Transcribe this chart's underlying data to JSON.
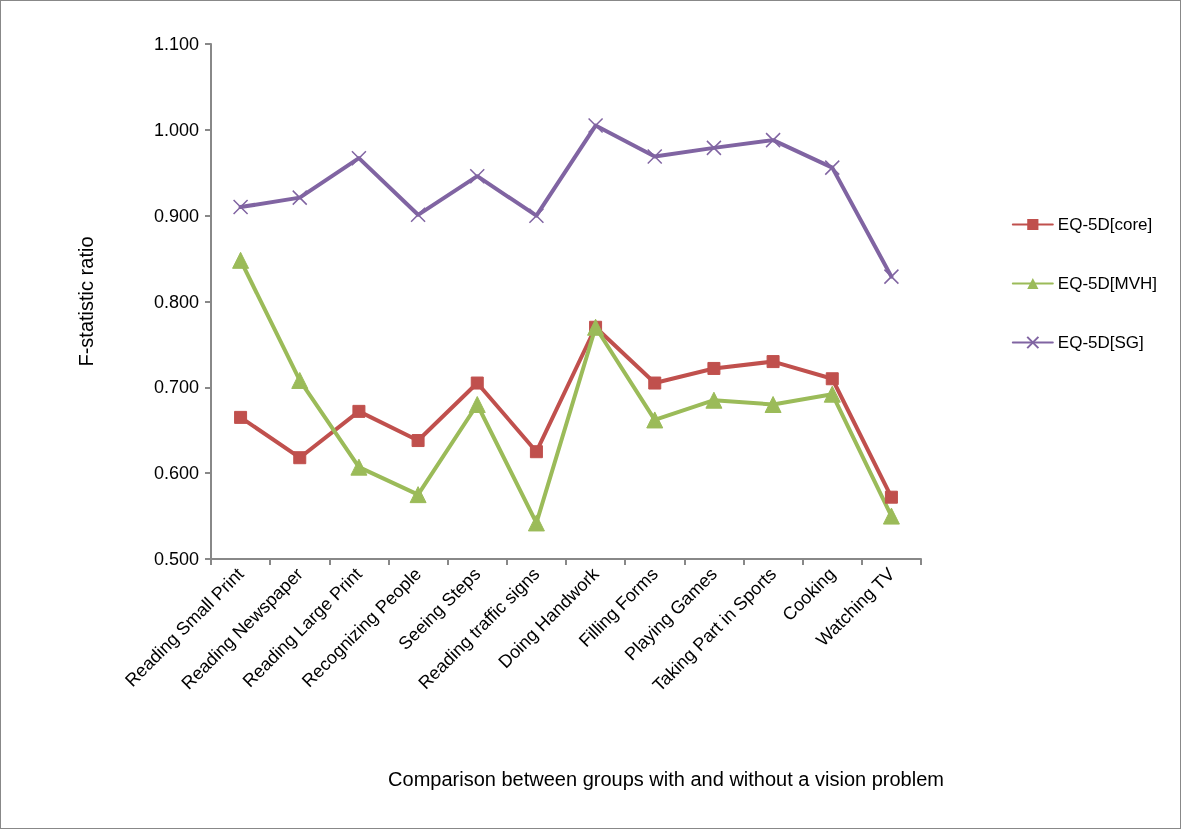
{
  "chart_data": {
    "type": "line",
    "xlabel": "Comparison between groups with and without a vision problem",
    "ylabel": "F-statistic ratio",
    "categories": [
      "Reading Small Print",
      "Reading Newspaper",
      "Reading Large Print",
      "Recognizing People",
      "Seeing Steps",
      "Reading traffic signs",
      "Doing Handwork",
      "Filling Forms",
      "Playing Games",
      "Taking Part in Sports",
      "Cooking",
      "Watching TV"
    ],
    "series": [
      {
        "name": "EQ-5D[core]",
        "color": "#c0504d",
        "marker": "square",
        "values": [
          0.665,
          0.618,
          0.672,
          0.638,
          0.705,
          0.625,
          0.77,
          0.705,
          0.722,
          0.73,
          0.71,
          0.572
        ]
      },
      {
        "name": "EQ-5D[MVH]",
        "color": "#9bbb59",
        "marker": "triangle",
        "values": [
          0.848,
          0.708,
          0.607,
          0.575,
          0.68,
          0.542,
          0.77,
          0.662,
          0.685,
          0.68,
          0.692,
          0.55
        ]
      },
      {
        "name": "EQ-5D[SG]",
        "color": "#8064a2",
        "marker": "cross",
        "values": [
          0.91,
          0.921,
          0.967,
          0.901,
          0.946,
          0.9,
          1.005,
          0.969,
          0.979,
          0.988,
          0.956,
          0.829
        ]
      }
    ],
    "ylim": [
      0.5,
      1.1
    ],
    "yticks": [
      {
        "value": 0.5,
        "label": "0.500"
      },
      {
        "value": 0.6,
        "label": "0.600"
      },
      {
        "value": 0.7,
        "label": "0.700"
      },
      {
        "value": 0.8,
        "label": "0.800"
      },
      {
        "value": 0.9,
        "label": "0.900"
      },
      {
        "value": 1.0,
        "label": "1.000"
      },
      {
        "value": 1.1,
        "label": "1.100"
      }
    ],
    "grid": false,
    "legend": "right",
    "line_style": "solid"
  }
}
